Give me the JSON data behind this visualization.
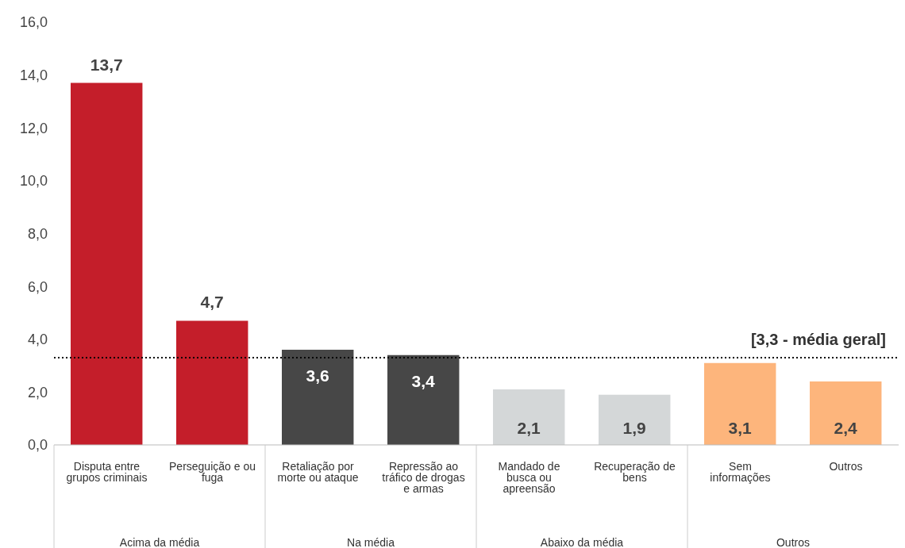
{
  "chart_data": {
    "type": "bar",
    "categories": [
      "Disputa entre grupos criminais",
      "Perseguição e ou fuga",
      "Retaliação por morte ou ataque",
      "Repressão ao tráfico de drogas e armas",
      "Mandado de busca ou apreensão",
      "Recuperação de bens",
      "Sem informações",
      "Outros"
    ],
    "values": [
      13.7,
      4.7,
      3.6,
      3.4,
      2.1,
      1.9,
      3.1,
      2.4
    ],
    "colors": [
      "#c41e2a",
      "#c41e2a",
      "#474747",
      "#474747",
      "#d4d7d8",
      "#d4d7d8",
      "#fdb57c",
      "#fdb57c"
    ],
    "value_labels": [
      "13,7",
      "4,7",
      "3,6",
      "3,4",
      "2,1",
      "1,9",
      "3,1",
      "2,4"
    ],
    "ylim": [
      0,
      16
    ],
    "yticks": [
      {
        "value": 0,
        "label": "0,0"
      },
      {
        "value": 2,
        "label": "2,0"
      },
      {
        "value": 4,
        "label": "4,0"
      },
      {
        "value": 6,
        "label": "6,0"
      },
      {
        "value": 8,
        "label": "8,0"
      },
      {
        "value": 10,
        "label": "10,0"
      },
      {
        "value": 12,
        "label": "12,0"
      },
      {
        "value": 14,
        "label": "14,0"
      },
      {
        "value": 16,
        "label": "16,0"
      }
    ],
    "ref_lines": [
      {
        "axis": "y",
        "value": 3.3,
        "label": "[3,3 - média geral]",
        "color": "#000000",
        "line_style": "dotted"
      }
    ],
    "annotations": [
      "Acima da média",
      "Na média",
      "Abaixo da média",
      "Outros"
    ],
    "legend": false
  }
}
